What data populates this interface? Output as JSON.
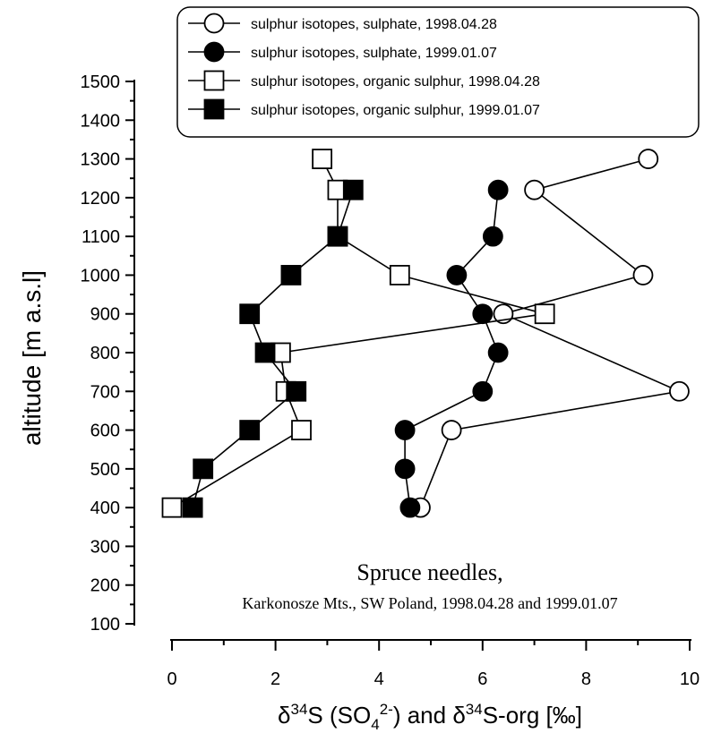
{
  "chart_data": {
    "type": "line",
    "ylabel": "altitude [m a.s.l]",
    "xlabel_parts": {
      "delta1": "δ",
      "sup1": "34",
      "text1": "S (SO",
      "sub1": "4",
      "sup2": "2-",
      "text2": ") and ",
      "delta2": "δ",
      "sup3": "34",
      "text3": "S-org   [‰]"
    },
    "xlim": [
      0,
      10
    ],
    "ylim": [
      100,
      1500
    ],
    "x_ticks": [
      "0",
      "2",
      "4",
      "6",
      "8",
      "10"
    ],
    "y_ticks": [
      "100",
      "200",
      "300",
      "400",
      "500",
      "600",
      "700",
      "800",
      "900",
      "1000",
      "1100",
      "1200",
      "1300",
      "1400",
      "1500"
    ],
    "annotation": {
      "title": "Spruce needles,",
      "subtitle": "Karkonosze Mts., SW Poland, 1998.04.28 and 1999.01.07"
    },
    "legend_position": "top",
    "series": [
      {
        "name": "sulphur isotopes, sulphate, 1998.04.28",
        "marker": "circle-open",
        "points": [
          {
            "x": 9.2,
            "y": 1300
          },
          {
            "x": 7.0,
            "y": 1220
          },
          {
            "x": 9.1,
            "y": 1000
          },
          {
            "x": 6.4,
            "y": 900
          },
          {
            "x": 9.8,
            "y": 700
          },
          {
            "x": 5.4,
            "y": 600
          },
          {
            "x": 4.8,
            "y": 400
          }
        ]
      },
      {
        "name": "sulphur isotopes, sulphate, 1999.01.07",
        "marker": "circle-filled",
        "points": [
          {
            "x": 6.3,
            "y": 1220
          },
          {
            "x": 6.2,
            "y": 1100
          },
          {
            "x": 5.5,
            "y": 1000
          },
          {
            "x": 6.0,
            "y": 900
          },
          {
            "x": 6.3,
            "y": 800
          },
          {
            "x": 6.0,
            "y": 700
          },
          {
            "x": 4.5,
            "y": 600
          },
          {
            "x": 4.5,
            "y": 500
          },
          {
            "x": 4.6,
            "y": 400
          }
        ]
      },
      {
        "name": "sulphur isotopes, organic sulphur, 1998.04.28",
        "marker": "square-open",
        "points": [
          {
            "x": 2.9,
            "y": 1300
          },
          {
            "x": 3.2,
            "y": 1220
          },
          {
            "x": 3.2,
            "y": 1100
          },
          {
            "x": 4.4,
            "y": 1000
          },
          {
            "x": 7.2,
            "y": 900
          },
          {
            "x": 2.1,
            "y": 800
          },
          {
            "x": 2.2,
            "y": 700
          },
          {
            "x": 2.5,
            "y": 600
          },
          {
            "x": 0.0,
            "y": 400
          }
        ]
      },
      {
        "name": "sulphur isotopes, organic sulphur, 1999.01.07",
        "marker": "square-filled",
        "points": [
          {
            "x": 3.5,
            "y": 1220
          },
          {
            "x": 3.2,
            "y": 1100
          },
          {
            "x": 2.3,
            "y": 1000
          },
          {
            "x": 1.5,
            "y": 900
          },
          {
            "x": 1.8,
            "y": 800
          },
          {
            "x": 2.4,
            "y": 700
          },
          {
            "x": 1.5,
            "y": 600
          },
          {
            "x": 0.6,
            "y": 500
          },
          {
            "x": 0.4,
            "y": 400
          }
        ]
      }
    ]
  }
}
